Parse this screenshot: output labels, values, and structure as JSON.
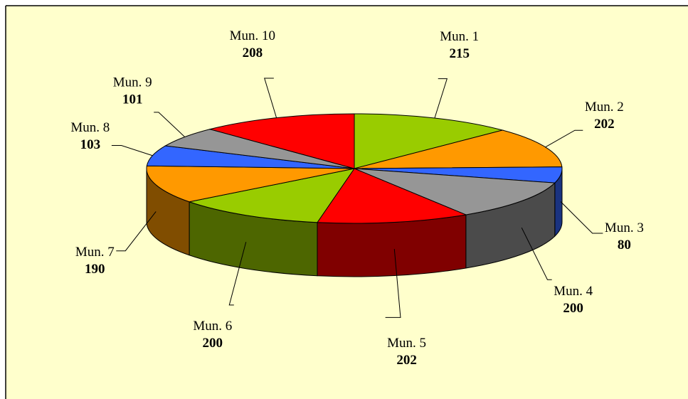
{
  "chart_data": {
    "type": "pie3d",
    "categories": [
      "Mun. 1",
      "Mun. 2",
      "Mun. 3",
      "Mun. 4",
      "Mun. 5",
      "Mun. 6",
      "Mun. 7",
      "Mun. 8",
      "Mun. 9",
      "Mun. 10"
    ],
    "values": [
      215,
      202,
      80,
      200,
      202,
      200,
      190,
      103,
      101,
      208
    ],
    "colors": [
      "#99cc00",
      "#ff9900",
      "#3366ff",
      "#969696",
      "#ff0000",
      "#99cc00",
      "#ff9900",
      "#3366ff",
      "#969696",
      "#ff0000"
    ]
  }
}
